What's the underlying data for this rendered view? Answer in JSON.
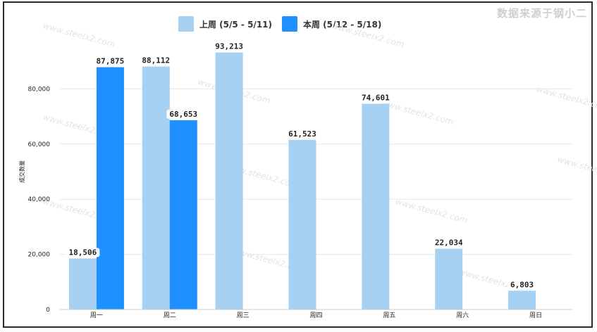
{
  "source_note": "数据来源于钢小二",
  "watermark": "www.steelx2.com",
  "colors": {
    "last_week": "#a6d1f3",
    "this_week": "#1e90ff",
    "grid": "#e8e8e8"
  },
  "chart_data": {
    "type": "bar",
    "ylabel": "成交数量",
    "ylim": [
      0,
      100000
    ],
    "yticks": [
      0,
      20000,
      40000,
      60000,
      80000
    ],
    "ytick_labels": [
      "0",
      "20,000",
      "40,000",
      "60,000",
      "80,000"
    ],
    "grid": true,
    "legend_position": "top-center",
    "categories": [
      "周一",
      "周二",
      "周三",
      "周四",
      "周五",
      "周六",
      "周日"
    ],
    "series": [
      {
        "name": "上周 (5/5 - 5/11)",
        "values": [
          18506,
          88112,
          93213,
          61523,
          74601,
          22034,
          6803
        ],
        "labels": [
          "18,506",
          "88,112",
          "93,213",
          "61,523",
          "74,601",
          "22,034",
          "6,803"
        ]
      },
      {
        "name": "本周 (5/12 - 5/18)",
        "values": [
          87875,
          68653,
          null,
          null,
          null,
          null,
          null
        ],
        "labels": [
          "87,875",
          "68,653",
          null,
          null,
          null,
          null,
          null
        ]
      }
    ]
  }
}
